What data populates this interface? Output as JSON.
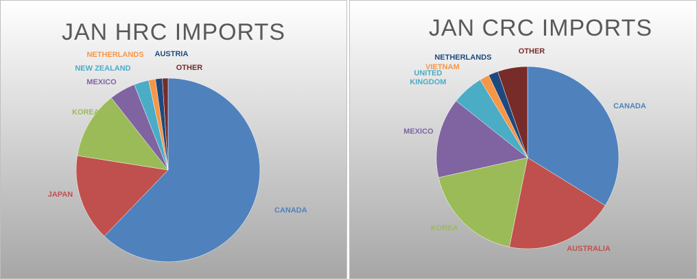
{
  "chart_data": [
    {
      "type": "pie",
      "title": "JAN HRC IMPORTS",
      "categories": [
        "CANADA",
        "JAPAN",
        "KOREA",
        "MEXICO",
        "NEW ZEALAND",
        "NETHERLANDS",
        "AUSTRIA",
        "OTHER"
      ],
      "values": [
        62.2,
        15.3,
        11.9,
        4.6,
        2.6,
        1.2,
        1.2,
        1.0
      ],
      "colors": [
        "#4f81bd",
        "#c0504d",
        "#9bbb59",
        "#8064a2",
        "#4bacc6",
        "#f79646",
        "#1f497d",
        "#772c2a"
      ]
    },
    {
      "type": "pie",
      "title": "JAN CRC IMPORTS",
      "categories": [
        "CANADA",
        "AUSTRALIA",
        "KOREA",
        "MEXICO",
        "UNITED\nKINGDOM",
        "VIETNAM",
        "NETHERLANDS",
        "OTHER"
      ],
      "values": [
        33.8,
        19.4,
        18.3,
        14.2,
        5.6,
        1.7,
        1.7,
        5.3
      ],
      "colors": [
        "#4f81bd",
        "#c0504d",
        "#9bbb59",
        "#8064a2",
        "#4bacc6",
        "#f79646",
        "#1f497d",
        "#772c2a"
      ]
    }
  ]
}
